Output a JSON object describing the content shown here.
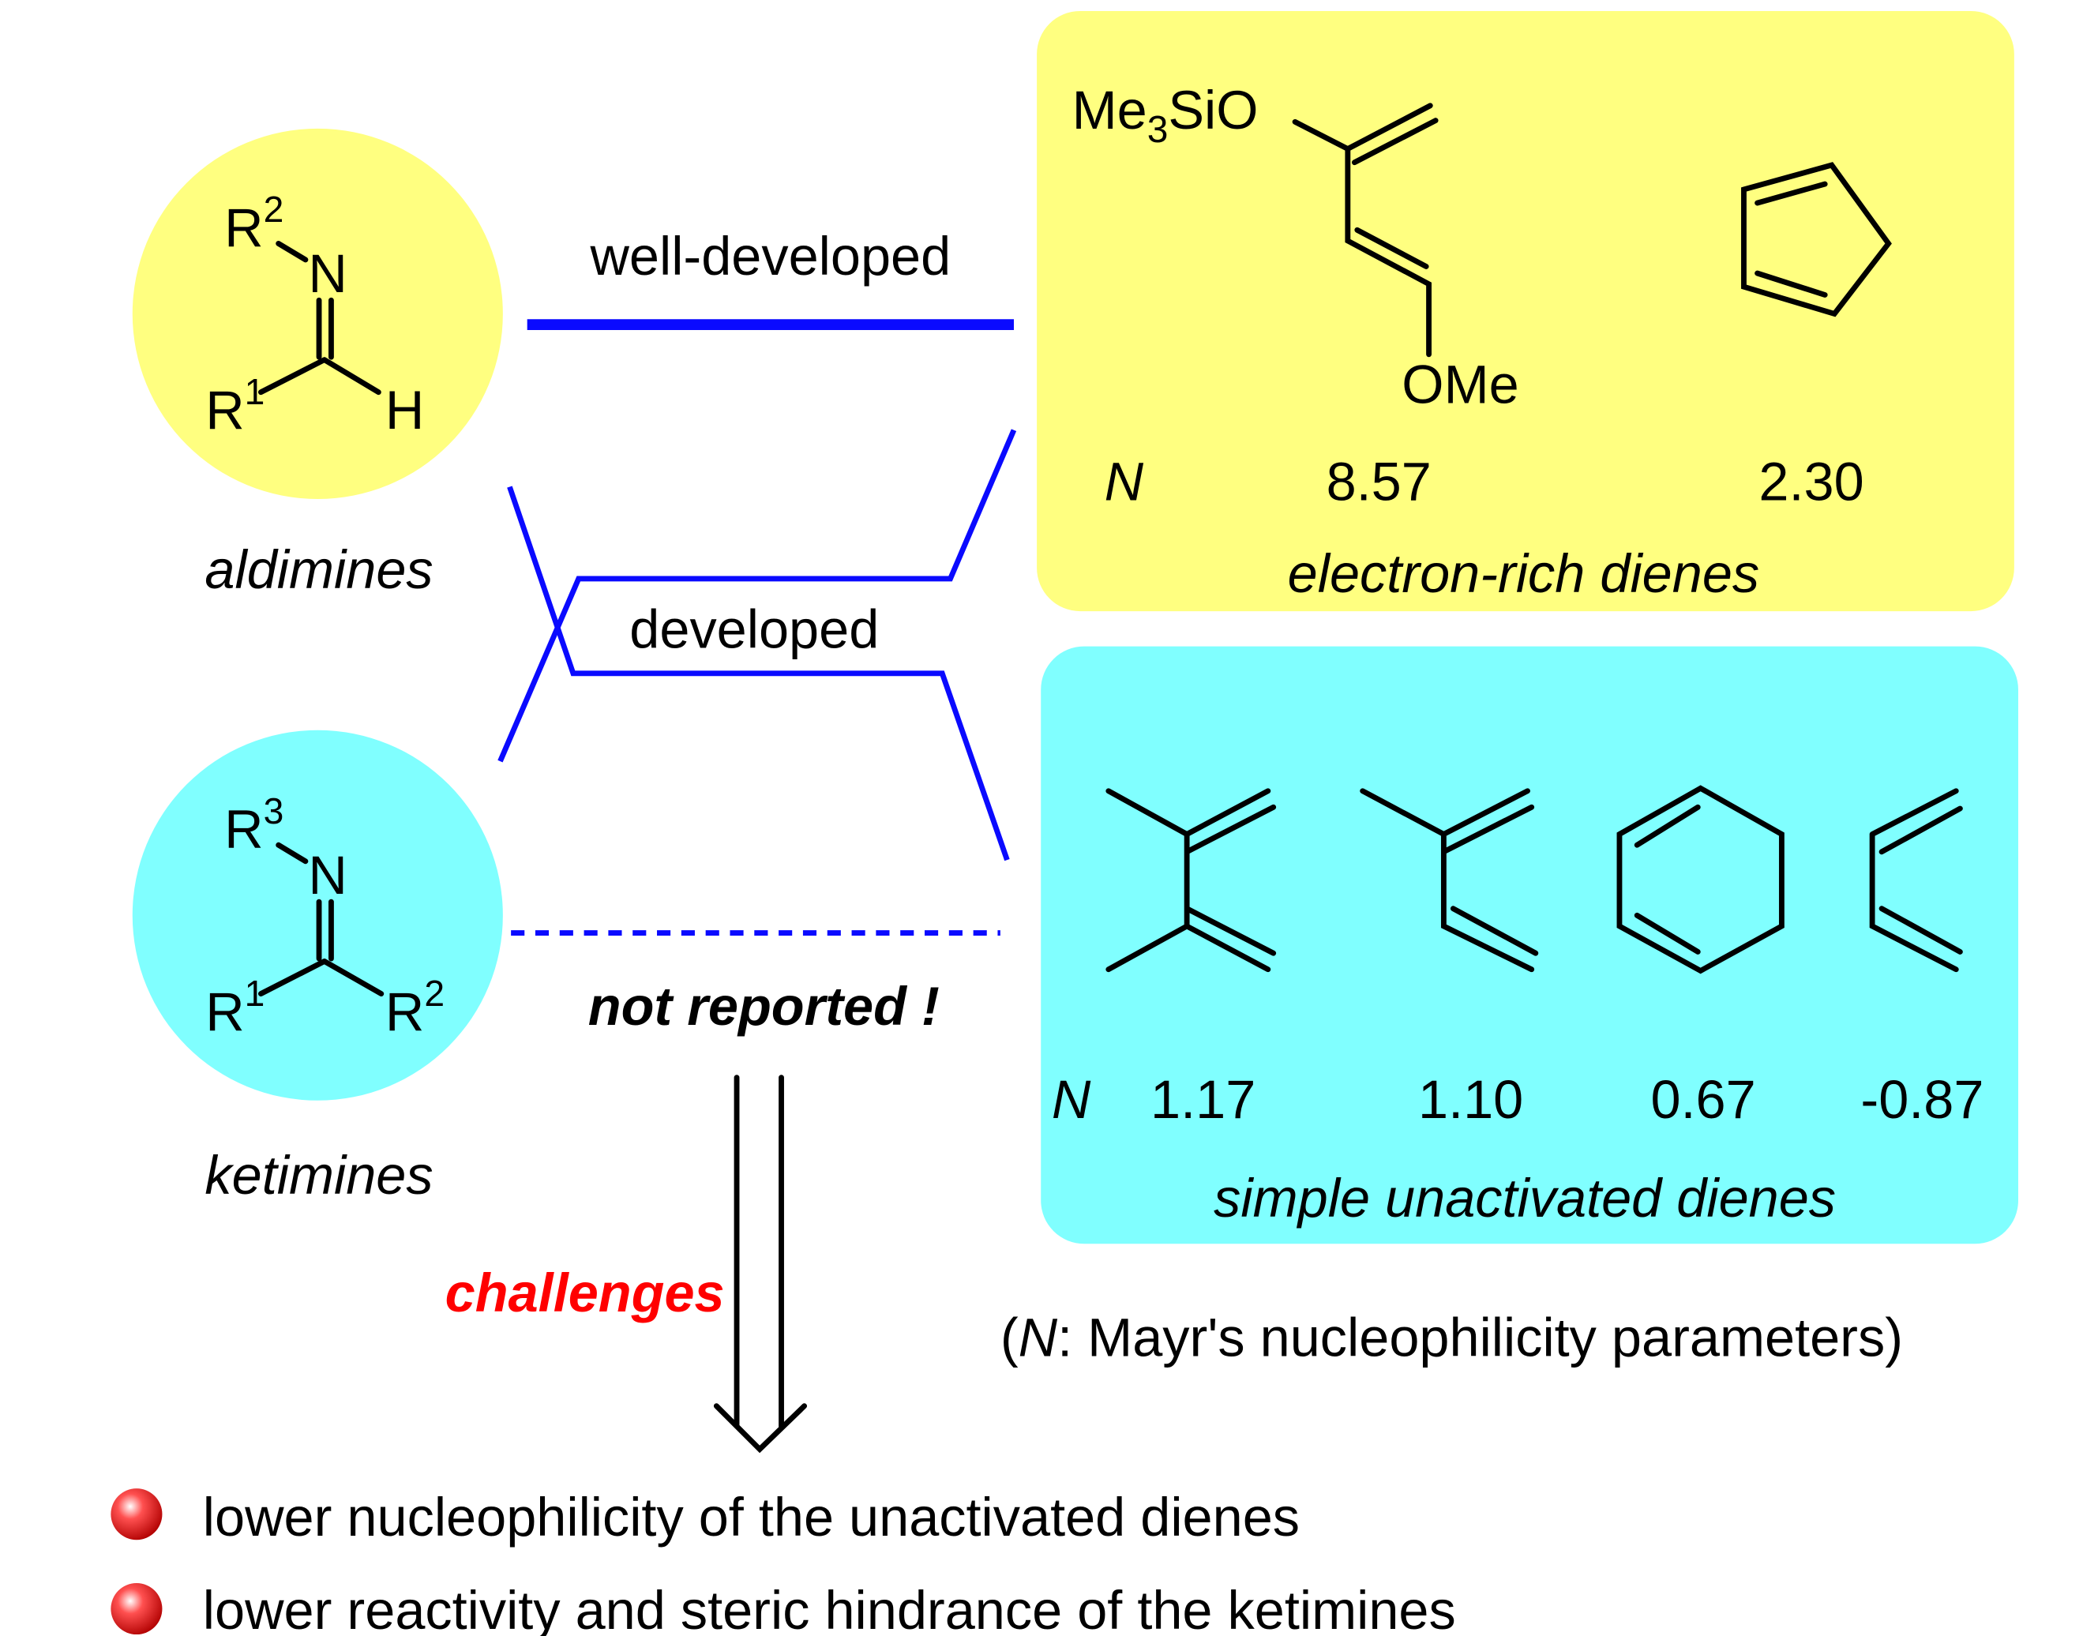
{
  "colors": {
    "aldimine_bg": "#ffff80",
    "ketimine_bg": "#80ffff",
    "connector": "#0a0aff",
    "challenge": "#ff0000"
  },
  "aldimine": {
    "R_top": "R",
    "R_top_sup": "2",
    "N": "N",
    "R_left": "R",
    "R_left_sup": "1",
    "H": "H",
    "caption": "aldimines"
  },
  "ketimine": {
    "R_top": "R",
    "R_top_sup": "3",
    "N": "N",
    "R_left": "R",
    "R_left_sup": "1",
    "R_right": "R",
    "R_right_sup": "2",
    "caption": "ketimines"
  },
  "links": {
    "well_developed": "well-developed",
    "developed": "developed",
    "not_reported": "not reported !"
  },
  "electron_rich": {
    "caption": "electron-rich dienes",
    "N_label": "N",
    "danishefsky": {
      "Me": "Me",
      "sub": "3",
      "SiO": "SiO",
      "OMe": "OMe"
    },
    "values": [
      "8.57",
      "2.30"
    ]
  },
  "unactivated": {
    "caption": "simple unactivated dienes",
    "N_label": "N",
    "values": [
      "1.17",
      "1.10",
      "0.67",
      "-0.87"
    ]
  },
  "note": {
    "open": "(",
    "N": "N",
    "rest": ": Mayr's nucleophilicity parameters)"
  },
  "challenges": {
    "label": "challenges",
    "items": [
      "lower nucleophilicity of the unactivated dienes",
      "lower reactivity and steric hindrance of the ketimines"
    ]
  }
}
